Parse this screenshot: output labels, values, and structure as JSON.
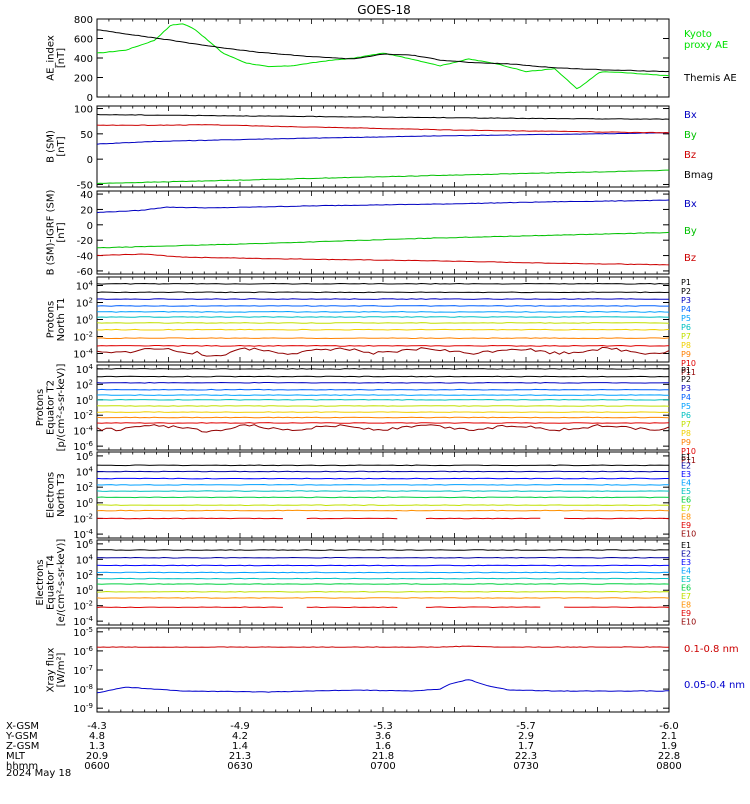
{
  "title": "GOES-18",
  "date_label": "2024 May 18",
  "chart_data": [
    {
      "type": "line",
      "ylabel": [
        "AE_index",
        "[nT]"
      ],
      "y_ticks": [
        "800",
        "600",
        "400",
        "200",
        "0"
      ],
      "y_tick_values": [
        800,
        600,
        400,
        200,
        0
      ],
      "ylim": [
        0,
        800
      ],
      "scale": "linear",
      "series": [
        {
          "name": "Kyoto proxy AE",
          "label_lines": [
            "Kyoto",
            "proxy AE"
          ],
          "color": "#00e000",
          "x": [
            0,
            0.05,
            0.1,
            0.13,
            0.15,
            0.17,
            0.22,
            0.26,
            0.3,
            0.34,
            0.4,
            0.45,
            0.5,
            0.55,
            0.6,
            0.65,
            0.7,
            0.75,
            0.8,
            0.84,
            0.88,
            0.92,
            0.97,
            1.0
          ],
          "values": [
            450,
            480,
            580,
            740,
            750,
            700,
            450,
            350,
            310,
            320,
            370,
            400,
            450,
            390,
            320,
            390,
            340,
            260,
            290,
            80,
            260,
            250,
            230,
            220
          ]
        },
        {
          "name": "Themis AE",
          "label_lines": [
            "Themis AE"
          ],
          "color": "#000000",
          "x": [
            0,
            0.06,
            0.12,
            0.2,
            0.28,
            0.36,
            0.45,
            0.5,
            0.55,
            0.6,
            0.66,
            0.72,
            0.8,
            0.88,
            0.94,
            1.0
          ],
          "values": [
            690,
            640,
            590,
            520,
            460,
            420,
            390,
            440,
            430,
            380,
            350,
            340,
            300,
            280,
            270,
            260
          ]
        }
      ]
    },
    {
      "type": "line",
      "ylabel": [
        "B (SM)",
        "[nT]"
      ],
      "y_ticks": [
        "100",
        "50",
        "0",
        "-50"
      ],
      "y_tick_values": [
        100,
        50,
        0,
        -50
      ],
      "ylim": [
        -55,
        105
      ],
      "scale": "linear",
      "series": [
        {
          "name": "Bx",
          "color": "#0000c0",
          "x": [
            0,
            0.1,
            0.3,
            0.6,
            1.0
          ],
          "values": [
            30,
            35,
            40,
            46,
            52
          ]
        },
        {
          "name": "By",
          "color": "#00c000",
          "x": [
            0,
            0.3,
            0.6,
            1.0
          ],
          "values": [
            -48,
            -40,
            -32,
            -22
          ]
        },
        {
          "name": "Bz",
          "color": "#cc0000",
          "x": [
            0,
            0.1,
            0.2,
            0.3,
            0.4,
            0.6,
            0.8,
            1.0
          ],
          "values": [
            67,
            67,
            68,
            65,
            63,
            58,
            55,
            52
          ]
        },
        {
          "name": "Bmag",
          "color": "#000000",
          "x": [
            0,
            0.2,
            0.4,
            0.6,
            0.8,
            1.0
          ],
          "values": [
            88,
            86,
            84,
            82,
            80,
            79
          ]
        }
      ]
    },
    {
      "type": "line",
      "ylabel": [
        "B (SM)-IGRF (SM)",
        "[nT]"
      ],
      "y_ticks": [
        "40",
        "20",
        "0",
        "-20",
        "-40",
        "-60"
      ],
      "y_tick_values": [
        40,
        20,
        0,
        -20,
        -40,
        -60
      ],
      "ylim": [
        -64,
        44
      ],
      "scale": "linear",
      "series": [
        {
          "name": "Bx",
          "color": "#0000c0",
          "x": [
            0,
            0.08,
            0.12,
            0.2,
            0.4,
            0.6,
            0.8,
            1.0
          ],
          "values": [
            16,
            19,
            23,
            22,
            25,
            27,
            30,
            32
          ]
        },
        {
          "name": "By",
          "color": "#00c000",
          "x": [
            0,
            0.3,
            0.6,
            1.0
          ],
          "values": [
            -30,
            -24,
            -17,
            -10
          ]
        },
        {
          "name": "Bz",
          "color": "#cc0000",
          "x": [
            0,
            0.08,
            0.15,
            0.3,
            0.6,
            0.8,
            1.0
          ],
          "values": [
            -40,
            -38,
            -42,
            -44,
            -47,
            -50,
            -52
          ]
        }
      ]
    },
    {
      "type": "line",
      "ylabel": [
        "Protons",
        "North T1"
      ],
      "y_ticks": [
        "10^4",
        "10^2",
        "10^0",
        "10^-2",
        "10^-4"
      ],
      "y_tick_values": [
        4,
        2,
        0,
        -2,
        -4
      ],
      "ylim": [
        -5,
        5
      ],
      "scale": "log",
      "label_step": 9,
      "series": [
        {
          "name": "P1",
          "color": "#000000",
          "level": 4.2
        },
        {
          "name": "P2",
          "color": "#000000",
          "level": 3.2
        },
        {
          "name": "P3",
          "color": "#0000c0",
          "level": 2.4
        },
        {
          "name": "P4",
          "color": "#0060ff",
          "level": 1.6
        },
        {
          "name": "P5",
          "color": "#00a0ff",
          "level": 0.9
        },
        {
          "name": "P6",
          "color": "#00c0c0",
          "level": 0.3
        },
        {
          "name": "P7",
          "color": "#c0e000",
          "level": -0.4
        },
        {
          "name": "P8",
          "color": "#f0d000",
          "level": -1.2
        },
        {
          "name": "P9",
          "color": "#ff8000",
          "level": -2.2
        },
        {
          "name": "P10",
          "color": "#e00000",
          "level": -3.1
        },
        {
          "name": "P11",
          "color": "#900000",
          "level": -3.7,
          "noisy": true
        }
      ]
    },
    {
      "type": "line",
      "ylabel": [
        "Protons",
        "Equator T2",
        "[p/(cm²-s-sr-keV)]"
      ],
      "y_ticks": [
        "10^4",
        "10^2",
        "10^0",
        "10^-2",
        "10^-4",
        "10^-6"
      ],
      "y_tick_values": [
        4,
        2,
        0,
        -2,
        -4,
        -6
      ],
      "ylim": [
        -6.5,
        4.5
      ],
      "scale": "log",
      "label_step": 9,
      "series": [
        {
          "name": "P1",
          "color": "#000000",
          "level": 4.0
        },
        {
          "name": "P2",
          "color": "#000000",
          "level": 3.0
        },
        {
          "name": "P3",
          "color": "#0000c0",
          "level": 2.2
        },
        {
          "name": "P4",
          "color": "#0060ff",
          "level": 1.3
        },
        {
          "name": "P5",
          "color": "#00a0ff",
          "level": 0.6
        },
        {
          "name": "P6",
          "color": "#00c0c0",
          "level": 0.0
        },
        {
          "name": "P7",
          "color": "#c0e000",
          "level": -0.8
        },
        {
          "name": "P8",
          "color": "#f0d000",
          "level": -1.6
        },
        {
          "name": "P9",
          "color": "#ff8000",
          "level": -2.3
        },
        {
          "name": "P10",
          "color": "#e00000",
          "level": -3.0
        },
        {
          "name": "P11",
          "color": "#900000",
          "level": -3.6,
          "noisy": true
        }
      ]
    },
    {
      "type": "line",
      "ylabel": [
        "Electrons",
        "North T3"
      ],
      "y_ticks": [
        "10^6",
        "10^4",
        "10^2",
        "10^0",
        "10^-2",
        "10^-4"
      ],
      "y_tick_values": [
        6,
        4,
        2,
        0,
        -2,
        -4
      ],
      "ylim": [
        -4.5,
        6.5
      ],
      "scale": "log",
      "label_step": 8.5,
      "series": [
        {
          "name": "E1",
          "color": "#000000",
          "level": 4.8
        },
        {
          "name": "E2",
          "color": "#0000a0",
          "level": 4.0
        },
        {
          "name": "E3",
          "color": "#0000ff",
          "level": 3.1
        },
        {
          "name": "E4",
          "color": "#00a0ff",
          "level": 2.3
        },
        {
          "name": "E5",
          "color": "#00c0c0",
          "level": 1.5
        },
        {
          "name": "E6",
          "color": "#00d040",
          "level": 0.7
        },
        {
          "name": "E7",
          "color": "#c0e000",
          "level": -0.3
        },
        {
          "name": "E8",
          "color": "#ff9000",
          "level": -1.0
        },
        {
          "name": "E9",
          "color": "#e00000",
          "level": -2.0,
          "gappy": true
        },
        {
          "name": "E10",
          "color": "#900000",
          "level": -3.5,
          "hidden": true
        }
      ]
    },
    {
      "type": "line",
      "ylabel": [
        "Electrons",
        "Equator T4",
        "[e/(cm²-s-sr-keV)]"
      ],
      "y_ticks": [
        "10^6",
        "10^4",
        "10^2",
        "10^0",
        "10^-2",
        "10^-4"
      ],
      "y_tick_values": [
        6,
        4,
        2,
        0,
        -2,
        -4
      ],
      "ylim": [
        -4.5,
        6.5
      ],
      "scale": "log",
      "label_step": 8.5,
      "series": [
        {
          "name": "E1",
          "color": "#000000",
          "level": 5.2
        },
        {
          "name": "E2",
          "color": "#0000a0",
          "level": 4.2
        },
        {
          "name": "E3",
          "color": "#0000ff",
          "level": 3.2
        },
        {
          "name": "E4",
          "color": "#00a0ff",
          "level": 2.3
        },
        {
          "name": "E5",
          "color": "#00c0c0",
          "level": 1.5
        },
        {
          "name": "E6",
          "color": "#00d040",
          "level": 0.8
        },
        {
          "name": "E7",
          "color": "#c0e000",
          "level": -0.2
        },
        {
          "name": "E8",
          "color": "#ff9000",
          "level": -1.0
        },
        {
          "name": "E9",
          "color": "#e00000",
          "level": -2.2,
          "gappy": true
        },
        {
          "name": "E10",
          "color": "#900000",
          "level": -3.5,
          "hidden": true
        }
      ]
    },
    {
      "type": "line",
      "ylabel": [
        "Xray flux",
        "[W/m²]"
      ],
      "y_ticks": [
        "10^-5",
        "10^-6",
        "10^-7",
        "10^-8",
        "10^-9"
      ],
      "y_tick_values": [
        -5,
        -6,
        -7,
        -8,
        -9
      ],
      "ylim": [
        -9.2,
        -4.8
      ],
      "scale": "log",
      "series": [
        {
          "name": "0.1-0.8 nm",
          "color": "#cc0000",
          "x": [
            0,
            0.2,
            0.4,
            0.6,
            0.65,
            0.7,
            0.75,
            0.8,
            1.0
          ],
          "values": [
            -5.8,
            -5.8,
            -5.8,
            -5.8,
            -5.75,
            -5.8,
            -5.8,
            -5.8,
            -5.8
          ]
        },
        {
          "name": "0.05-0.4 nm",
          "color": "#0000cc",
          "x": [
            0,
            0.05,
            0.1,
            0.15,
            0.3,
            0.45,
            0.55,
            0.6,
            0.62,
            0.65,
            0.68,
            0.72,
            0.8,
            0.9,
            1.0
          ],
          "values": [
            -8.2,
            -7.9,
            -8.0,
            -8.1,
            -8.15,
            -8.05,
            -8.1,
            -8.0,
            -7.7,
            -7.5,
            -7.8,
            -8.05,
            -8.1,
            -8.1,
            -8.1
          ]
        }
      ]
    }
  ],
  "x_axis": {
    "ticks": [
      "0600",
      "0630",
      "0700",
      "0730",
      "0800"
    ],
    "rows": [
      {
        "label": "X-GSM",
        "values": [
          "-4.3",
          "-4.9",
          "-5.3",
          "-5.7",
          "-6.0"
        ]
      },
      {
        "label": "Y-GSM",
        "values": [
          "4.8",
          "4.2",
          "3.6",
          "2.9",
          "2.1"
        ]
      },
      {
        "label": "Z-GSM",
        "values": [
          "1.3",
          "1.4",
          "1.6",
          "1.7",
          "1.9"
        ]
      },
      {
        "label": "MLT",
        "values": [
          "20.9",
          "21.3",
          "21.8",
          "22.3",
          "22.8"
        ]
      },
      {
        "label": "hhmm",
        "values": [
          "0600",
          "0630",
          "0700",
          "0730",
          "0800"
        ]
      }
    ]
  }
}
